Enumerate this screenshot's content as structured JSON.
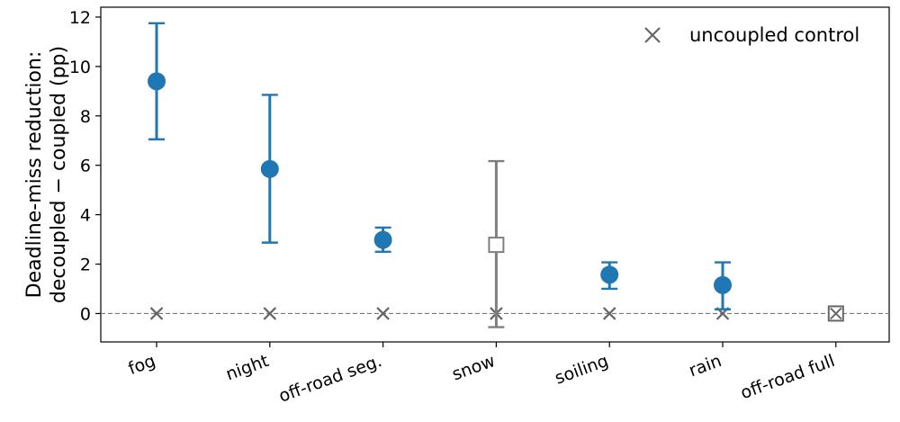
{
  "chart_data": {
    "type": "scatter",
    "title": "",
    "ylabel_lines": [
      "Deadline-miss reduction:",
      "decoupled − coupled (pp)"
    ],
    "xlabel": "",
    "categories": [
      "fog",
      "night",
      "off-road seg.",
      "snow",
      "soiling",
      "rain",
      "off-road full"
    ],
    "ylim": [
      -1.15,
      12.4
    ],
    "yticks": [
      0,
      2,
      4,
      6,
      8,
      10,
      12
    ],
    "grid": false,
    "legend": {
      "position": "top-right",
      "entries": [
        "uncoupled control"
      ]
    },
    "reference_line": {
      "y": 0,
      "style": "dashed"
    },
    "series": [
      {
        "name": "",
        "marker": "circle",
        "points": [
          {
            "category": "fog",
            "y": 9.4,
            "low": 7.05,
            "high": 11.75,
            "style": "filled"
          },
          {
            "category": "night",
            "y": 5.85,
            "low": 2.87,
            "high": 8.85,
            "style": "filled"
          },
          {
            "category": "off-road seg.",
            "y": 2.98,
            "low": 2.5,
            "high": 3.48,
            "style": "filled"
          },
          {
            "category": "snow",
            "y": 2.78,
            "low": -0.55,
            "high": 6.17,
            "style": "open-square"
          },
          {
            "category": "soiling",
            "y": 1.57,
            "low": 1.0,
            "high": 2.07,
            "style": "filled"
          },
          {
            "category": "rain",
            "y": 1.15,
            "low": 0.17,
            "high": 2.07,
            "style": "filled"
          },
          {
            "category": "off-road full",
            "y": 0.0,
            "low": null,
            "high": null,
            "style": "open-square"
          }
        ]
      },
      {
        "name": "uncoupled control",
        "marker": "x",
        "points": [
          {
            "category": "fog",
            "y": 0
          },
          {
            "category": "night",
            "y": 0
          },
          {
            "category": "off-road seg.",
            "y": 0
          },
          {
            "category": "snow",
            "y": 0
          },
          {
            "category": "soiling",
            "y": 0
          },
          {
            "category": "rain",
            "y": 0
          },
          {
            "category": "off-road full",
            "y": 0
          }
        ]
      }
    ],
    "colors": {
      "primary": "#1f77b4",
      "muted": "#7f7f7f",
      "control": "#666666",
      "reference": "#777777"
    }
  }
}
